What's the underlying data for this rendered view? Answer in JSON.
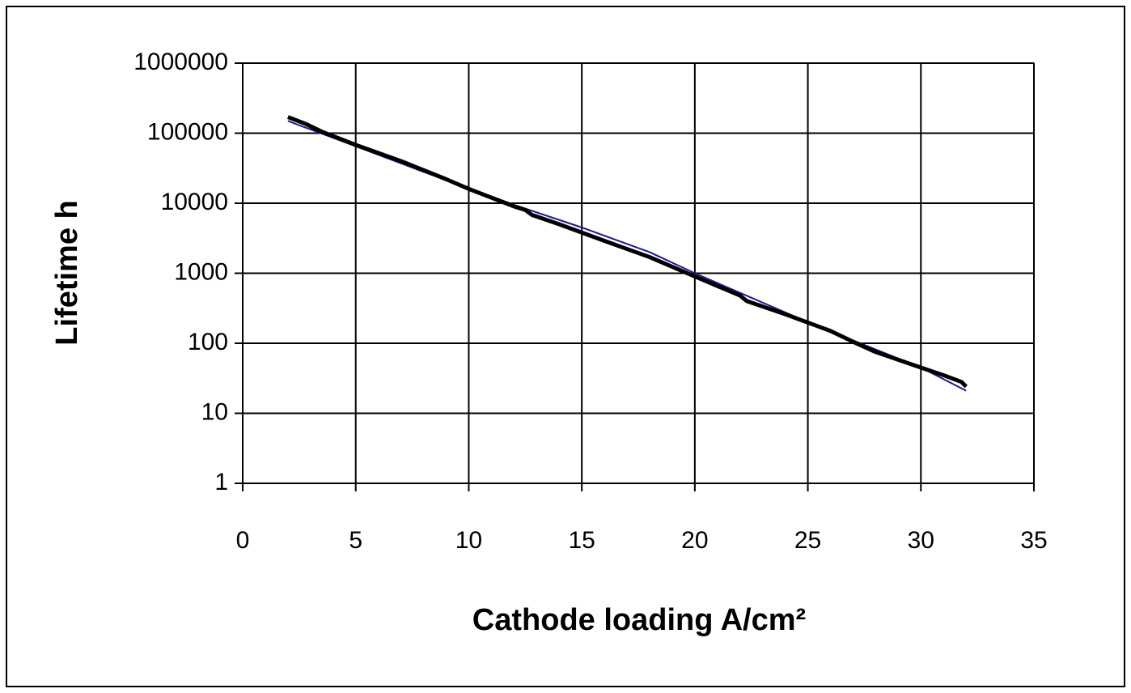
{
  "chart_data": {
    "type": "line",
    "xlabel": "Cathode loading A/cm²",
    "ylabel": "Lifetime h",
    "xlim": [
      0,
      35
    ],
    "xticks": [
      0,
      5,
      10,
      15,
      20,
      25,
      30,
      35
    ],
    "ylim": [
      1,
      1000000
    ],
    "yticks": [
      1,
      10,
      100,
      1000,
      10000,
      100000,
      1000000
    ],
    "ylog": true,
    "grid": true,
    "series": [
      {
        "color": "#1a1a8c",
        "width": 2,
        "x": [
          2,
          2.5,
          5,
          8,
          10,
          12,
          15,
          18,
          20,
          25,
          27,
          30,
          32
        ],
        "values": [
          150000,
          130000,
          65000,
          28000,
          16500,
          9500,
          4500,
          2000,
          1000,
          200,
          110,
          45,
          21
        ]
      },
      {
        "color": "#000000",
        "width": 5,
        "x": [
          2,
          2.8,
          3.5,
          5,
          7,
          9,
          10,
          12,
          12.5,
          12.8,
          14,
          16,
          18,
          20,
          22,
          22.3,
          24,
          26,
          27,
          28,
          30,
          31,
          31.8,
          32
        ],
        "values": [
          170000,
          135000,
          105000,
          68000,
          40000,
          22000,
          16000,
          9000,
          8000,
          6800,
          5000,
          2900,
          1700,
          900,
          480,
          400,
          260,
          150,
          105,
          75,
          45,
          35,
          28,
          24
        ]
      }
    ]
  }
}
